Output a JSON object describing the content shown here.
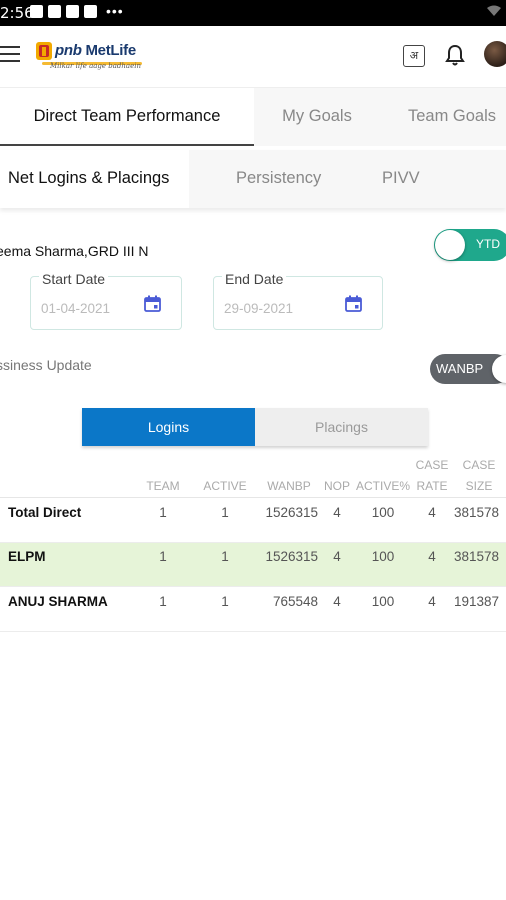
{
  "status_bar": {
    "time": "2:56",
    "overflow": "•••"
  },
  "app_bar": {
    "brand_prefix": "pnb",
    "brand_name": "MetLife",
    "tagline": "Milkar life aage badhaein",
    "lang_icon_text": "अ",
    "accent_color": "#1fa88c"
  },
  "tabs_primary": [
    {
      "label": "Direct Team Performance",
      "active": true
    },
    {
      "label": "My Goals",
      "active": false
    },
    {
      "label": "Team Goals",
      "active": false
    }
  ],
  "tabs_secondary": [
    {
      "label": "Net Logins & Placings",
      "active": true
    },
    {
      "label": "Persistency",
      "active": false
    },
    {
      "label": "PIVV",
      "active": false
    }
  ],
  "agent": {
    "name": "eema Sharma,GRD III N"
  },
  "period_toggle": {
    "label": "YTD",
    "on": true
  },
  "start_date": {
    "label": "Start Date",
    "value": "01-04-2021"
  },
  "end_date": {
    "label": "End Date",
    "value": "29-09-2021"
  },
  "business_update": {
    "label": "ssiness Update",
    "toggle_label": "WANBP"
  },
  "segmented": {
    "logins": "Logins",
    "placings": "Placings",
    "selected": "Logins"
  },
  "table": {
    "headers": {
      "team": "TEAM",
      "active": "ACTIVE",
      "wanbp": "WANBP",
      "nop": "NOP",
      "active_pct": "ACTIVE%",
      "case_rate_1": "CASE",
      "case_rate_2": "RATE",
      "case_size_1": "CASE",
      "case_size_2": "SIZE"
    },
    "rows": [
      {
        "name": "Total Direct",
        "team": "1",
        "active": "1",
        "wanbp": "1526315",
        "nop": "4",
        "active_pct": "100",
        "case_rate": "4",
        "case_size": "381578",
        "highlight": false
      },
      {
        "name": "ELPM",
        "team": "1",
        "active": "1",
        "wanbp": "1526315",
        "nop": "4",
        "active_pct": "100",
        "case_rate": "4",
        "case_size": "381578",
        "highlight": true
      },
      {
        "name": "ANUJ SHARMA",
        "team": "1",
        "active": "1",
        "wanbp": "765548",
        "nop": "4",
        "active_pct": "100",
        "case_rate": "4",
        "case_size": "191387",
        "highlight": false
      }
    ]
  }
}
